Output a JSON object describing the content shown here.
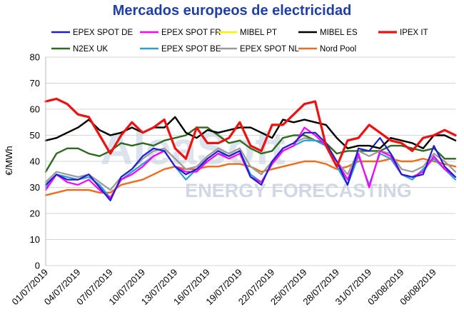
{
  "chart_data": {
    "type": "line",
    "title": "Mercados europeos de electricidad",
    "ylabel": "€/MWh",
    "xlabel": "",
    "ylim": [
      0,
      80
    ],
    "yticks": [
      0,
      10,
      20,
      30,
      40,
      50,
      60,
      70,
      80
    ],
    "grid": true,
    "legend_position": "top",
    "watermark": {
      "logo": "AleaSoft",
      "text": "ENERGY FORECASTING"
    },
    "x": [
      "01/07/2019",
      "02/07/2019",
      "03/07/2019",
      "04/07/2019",
      "05/07/2019",
      "06/07/2019",
      "07/07/2019",
      "08/07/2019",
      "09/07/2019",
      "10/07/2019",
      "11/07/2019",
      "12/07/2019",
      "13/07/2019",
      "14/07/2019",
      "15/07/2019",
      "16/07/2019",
      "17/07/2019",
      "18/07/2019",
      "19/07/2019",
      "20/07/2019",
      "21/07/2019",
      "22/07/2019",
      "23/07/2019",
      "24/07/2019",
      "25/07/2019",
      "26/07/2019",
      "27/07/2019",
      "28/07/2019",
      "29/07/2019",
      "30/07/2019",
      "31/07/2019",
      "01/08/2019",
      "02/08/2019",
      "03/08/2019",
      "04/08/2019",
      "05/08/2019",
      "06/08/2019",
      "07/08/2019",
      "08/08/2019"
    ],
    "xtick_labels": [
      "01/07/2019",
      "04/07/2019",
      "07/07/2019",
      "10/07/2019",
      "13/07/2019",
      "16/07/2019",
      "19/07/2019",
      "22/07/2019",
      "25/07/2019",
      "28/07/2019",
      "31/07/2019",
      "03/08/2019",
      "06/08/2019"
    ],
    "series": [
      {
        "name": "EPEX SPOT DE",
        "color": "#1f1fcf",
        "width": 2.2,
        "values": [
          31,
          35,
          33,
          33,
          35,
          30,
          25,
          34,
          37,
          42,
          45,
          44,
          38,
          35,
          37,
          41,
          44,
          42,
          44,
          34,
          31,
          40,
          45,
          47,
          51,
          51,
          47,
          40,
          31,
          45,
          44,
          49,
          43,
          35,
          34,
          35,
          46,
          38,
          34
        ]
      },
      {
        "name": "EPEX SPOT FR",
        "color": "#ff00ff",
        "width": 2.2,
        "values": [
          29,
          35,
          32,
          31,
          33,
          29,
          26,
          33,
          35,
          38,
          42,
          44,
          38,
          36,
          36,
          40,
          43,
          41,
          43,
          34,
          32,
          39,
          44,
          46,
          53,
          50,
          46,
          40,
          33,
          43,
          30,
          44,
          42,
          35,
          34,
          36,
          42,
          37,
          34
        ]
      },
      {
        "name": "MIBEL PT",
        "color": "#ffee00",
        "width": 2.2,
        "values": [
          48,
          49,
          51,
          53,
          56,
          52,
          50,
          51,
          53,
          51,
          53,
          53,
          57,
          51,
          49,
          52,
          51,
          52,
          53,
          53,
          51,
          49,
          56,
          55,
          56,
          55,
          54,
          49,
          45,
          46,
          46,
          45,
          49,
          48,
          47,
          45,
          50,
          50,
          48
        ]
      },
      {
        "name": "MIBEL ES",
        "color": "#000000",
        "width": 2.4,
        "values": [
          48,
          49,
          51,
          53,
          56,
          52,
          50,
          51,
          53,
          51,
          53,
          53,
          57,
          51,
          49,
          52,
          51,
          52,
          53,
          53,
          51,
          49,
          56,
          55,
          56,
          55,
          54,
          49,
          45,
          46,
          46,
          45,
          49,
          48,
          47,
          45,
          50,
          50,
          48
        ]
      },
      {
        "name": "IPEX IT",
        "color": "#ee1111",
        "width": 3.2,
        "values": [
          63,
          64,
          62,
          58,
          57,
          50,
          43,
          50,
          55,
          51,
          53,
          56,
          45,
          41,
          53,
          47,
          47,
          49,
          55,
          46,
          44,
          54,
          54,
          58,
          62,
          63,
          46,
          38,
          48,
          49,
          54,
          51,
          48,
          47,
          44,
          49,
          50,
          52,
          50
        ]
      },
      {
        "name": "N2EX UK",
        "color": "#2e6b1f",
        "width": 2.4,
        "values": [
          36,
          43,
          45,
          45,
          43,
          42,
          44,
          47,
          46,
          47,
          46,
          48,
          49,
          50,
          53,
          53,
          50,
          47,
          48,
          45,
          43,
          44,
          49,
          50,
          50,
          48,
          47,
          43,
          44,
          44,
          44,
          44,
          46,
          46,
          45,
          44,
          45,
          41,
          41
        ]
      },
      {
        "name": "EPEX SPOT BE",
        "color": "#2a9fd6",
        "width": 2.2,
        "values": [
          30,
          35,
          34,
          33,
          34,
          31,
          26,
          33,
          36,
          39,
          42,
          44,
          38,
          33,
          37,
          40,
          43,
          42,
          44,
          35,
          32,
          39,
          44,
          46,
          48,
          48,
          46,
          38,
          31,
          42,
          31,
          43,
          41,
          35,
          33,
          37,
          41,
          37,
          33
        ]
      },
      {
        "name": "EPEX SPOT NL",
        "color": "#9a9a9a",
        "width": 2.2,
        "values": [
          32,
          36,
          35,
          34,
          35,
          32,
          29,
          34,
          37,
          41,
          44,
          45,
          41,
          37,
          38,
          42,
          45,
          43,
          45,
          38,
          35,
          40,
          45,
          47,
          49,
          48,
          46,
          40,
          35,
          44,
          42,
          44,
          43,
          37,
          36,
          38,
          43,
          40,
          36
        ]
      },
      {
        "name": "Nord Pool",
        "color": "#ef6c1c",
        "width": 2.4,
        "values": [
          27,
          28,
          29,
          29,
          29,
          28,
          28,
          31,
          32,
          33,
          35,
          37,
          38,
          37,
          37,
          38,
          38,
          39,
          39,
          38,
          36,
          37,
          38,
          39,
          40,
          40,
          39,
          37,
          38,
          40,
          40,
          40,
          41,
          40,
          40,
          41,
          40,
          39,
          38
        ]
      }
    ]
  }
}
